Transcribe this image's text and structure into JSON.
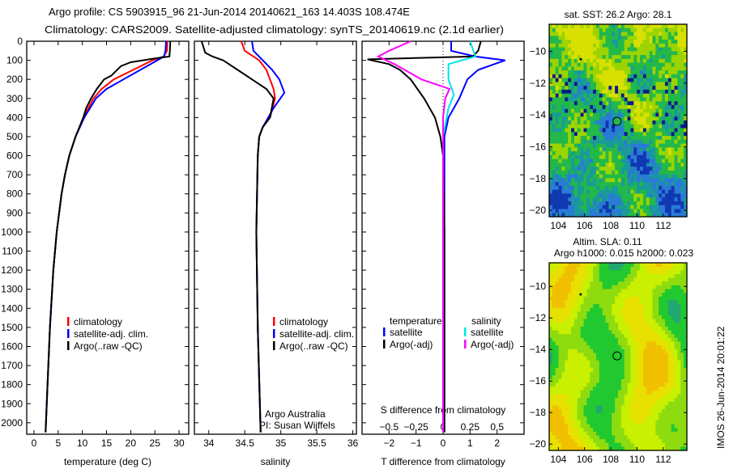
{
  "title": {
    "line1": "Argo profile: CS 5903915_96 21-Jun-2014 20140621_163 14.403S 108.474E",
    "line2": "Climatology: CARS2009. Satellite-adjusted climatology: synTS_20140619.nc (2.1d earlier)"
  },
  "colors": {
    "climatology": "#ff0000",
    "satellite": "#0000ff",
    "argo": "#000000",
    "sal_satellite": "#00e5e5",
    "sal_argo": "#ff00ff"
  },
  "chart_data": [
    {
      "type": "line",
      "name": "temperature",
      "xlabel": "temperature (deg C)",
      "xlim": [
        -1.5,
        32
      ],
      "ylim": [
        2060,
        0
      ],
      "xticks": [
        0,
        5,
        10,
        15,
        20,
        25,
        30
      ],
      "yticks": [
        0,
        100,
        200,
        300,
        400,
        500,
        600,
        700,
        800,
        900,
        1000,
        1100,
        1200,
        1300,
        1400,
        1500,
        1600,
        1700,
        1800,
        1900,
        2000
      ],
      "legend": [
        "climatology",
        "satellite-adj. clim.",
        "Argo(..raw -QC)"
      ],
      "series": [
        {
          "name": "climatology",
          "color": "#ff0000",
          "depth": [
            0,
            50,
            80,
            100,
            150,
            200,
            250,
            300,
            400,
            500,
            600,
            700,
            800,
            1000,
            1200,
            1500,
            1800,
            2050
          ],
          "values": [
            27.6,
            27.5,
            26.8,
            24.5,
            20.5,
            16.5,
            14,
            12.3,
            10.2,
            8.6,
            7.3,
            6.4,
            5.7,
            4.7,
            4.0,
            3.3,
            2.8,
            2.4
          ]
        },
        {
          "name": "satellite",
          "color": "#0000ff",
          "depth": [
            0,
            50,
            80,
            100,
            150,
            200,
            250,
            300,
            400,
            500,
            600,
            700,
            800,
            1000,
            1200,
            1500,
            1800,
            2050
          ],
          "values": [
            27.3,
            27.2,
            26.9,
            25.5,
            22,
            18.5,
            15,
            12.8,
            10.4,
            8.6,
            7.3,
            6.4,
            5.7,
            4.7,
            4.0,
            3.3,
            2.8,
            2.4
          ]
        },
        {
          "name": "argo",
          "color": "#000000",
          "depth": [
            0,
            50,
            80,
            90,
            110,
            130,
            150,
            180,
            200,
            250,
            300,
            350,
            400,
            500,
            600,
            700,
            800,
            1000,
            1200,
            1500,
            1800,
            2050
          ],
          "values": [
            28.2,
            28.1,
            28,
            25,
            20,
            18,
            17.2,
            16,
            14.5,
            13,
            11.8,
            10.8,
            10.2,
            8.6,
            7.3,
            6.4,
            5.7,
            4.7,
            4.0,
            3.3,
            2.8,
            2.4
          ]
        }
      ]
    },
    {
      "type": "line",
      "name": "salinity",
      "xlabel": "salinity",
      "xlim": [
        33.8,
        36.05
      ],
      "ylim": [
        2060,
        0
      ],
      "xticks": [
        34,
        34.5,
        35,
        35.5,
        36
      ],
      "legend": [
        "climatology",
        "satellite-adj. clim.",
        "Argo(..raw -QC)"
      ],
      "annotation": [
        "Argo Australia",
        "PI: Susan Wijffels"
      ],
      "series": [
        {
          "name": "climatology",
          "color": "#ff0000",
          "depth": [
            0,
            50,
            100,
            150,
            200,
            250,
            300,
            400,
            450,
            500,
            600,
            1000,
            1500,
            2050
          ],
          "values": [
            34.45,
            34.5,
            34.7,
            34.8,
            34.85,
            34.9,
            34.92,
            34.85,
            34.75,
            34.7,
            34.68,
            34.66,
            34.68,
            34.72
          ]
        },
        {
          "name": "satellite",
          "color": "#0000ff",
          "depth": [
            0,
            50,
            100,
            150,
            200,
            270,
            350,
            450,
            500,
            600,
            1000,
            1500,
            2050
          ],
          "values": [
            34.6,
            34.62,
            34.75,
            34.88,
            34.98,
            35.05,
            34.9,
            34.75,
            34.7,
            34.68,
            34.66,
            34.68,
            34.72
          ]
        },
        {
          "name": "argo",
          "color": "#000000",
          "depth": [
            0,
            60,
            80,
            100,
            150,
            200,
            250,
            300,
            400,
            450,
            500,
            600,
            1000,
            1500,
            2050
          ],
          "values": [
            33.9,
            33.95,
            34.05,
            34.2,
            34.4,
            34.6,
            34.8,
            34.9,
            34.85,
            34.75,
            34.7,
            34.68,
            34.66,
            34.68,
            34.72
          ]
        }
      ]
    },
    {
      "type": "line",
      "name": "difference",
      "xlabel": "T difference from climatology",
      "x2label": "S difference from climatology",
      "xlim": [
        -3,
        3
      ],
      "ylim": [
        2060,
        0
      ],
      "xticks": [
        -2,
        -1,
        0,
        1,
        2
      ],
      "x2ticks": [
        "-0.5",
        "-0.25",
        "0",
        "0.25",
        "0.5"
      ],
      "legend": {
        "temperature": "temperature",
        "salinity": "salinity",
        "t_sat": "satellite",
        "t_argo": "Argo(-adj)",
        "s_sat": "satellite",
        "s_argo": "Argo(-adj)"
      },
      "series": [
        {
          "name": "T satellite",
          "color": "#0000ff",
          "unit": "T",
          "depth": [
            0,
            50,
            80,
            100,
            150,
            200,
            300,
            400,
            500,
            2050
          ],
          "values": [
            0.3,
            0.3,
            1.2,
            2.3,
            1.3,
            0.9,
            0.6,
            0.2,
            0.05,
            0.05
          ]
        },
        {
          "name": "T Argo",
          "color": "#000000",
          "unit": "T",
          "depth": [
            0,
            50,
            80,
            95,
            120,
            150,
            200,
            300,
            400,
            500,
            600,
            1000,
            1500,
            2050
          ],
          "values": [
            1.4,
            1.3,
            1.1,
            -2.8,
            -2.0,
            -1.6,
            -1.2,
            -0.7,
            -0.3,
            -0.1,
            0,
            0.05,
            0.05,
            0.05
          ]
        },
        {
          "name": "S satellite",
          "color": "#00e5e5",
          "unit": "S",
          "depth": [
            0,
            80,
            120,
            200,
            280,
            350,
            500,
            2050
          ],
          "values": [
            0.25,
            0.3,
            0.05,
            0.05,
            0.1,
            0.05,
            0,
            0
          ]
        },
        {
          "name": "S Argo",
          "color": "#ff00ff",
          "unit": "S",
          "depth": [
            0,
            50,
            80,
            120,
            200,
            250,
            300,
            400,
            2050
          ],
          "values": [
            -0.3,
            -0.5,
            -0.6,
            -0.45,
            -0.2,
            0.06,
            0.02,
            0,
            0
          ]
        }
      ]
    },
    {
      "type": "heatmap",
      "name": "sst-map",
      "title": "sat. SST: 26.2 Argo: 28.1",
      "xticks": [
        104,
        106,
        108,
        110,
        112
      ],
      "yticks": [
        -10,
        -12,
        -14,
        -16,
        -18,
        -20
      ],
      "marker": {
        "lon": 108.474,
        "lat": -14.403
      }
    },
    {
      "type": "heatmap",
      "name": "sla-map",
      "title1": "Altim. SLA: 0.11",
      "title2": "Argo h1000: 0.015 h2000: 0.023",
      "xticks": [
        104,
        106,
        108,
        110,
        112
      ],
      "yticks": [
        -10,
        -12,
        -14,
        -16,
        -18,
        -20
      ],
      "marker": {
        "lon": 108.474,
        "lat": -14.403
      }
    }
  ],
  "credit": "IMOS 26-Jun-2014 20:01:22"
}
